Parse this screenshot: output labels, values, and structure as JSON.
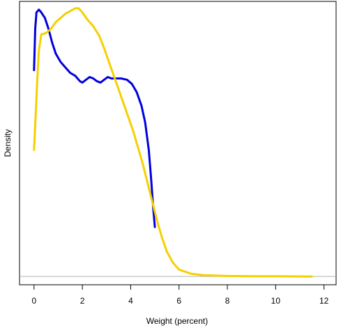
{
  "chart_data": {
    "type": "line",
    "title": "",
    "xlabel": "Weight (percent)",
    "ylabel": "Density",
    "xlim": [
      -0.6,
      12.5
    ],
    "ylim": [
      -0.03,
      1.0
    ],
    "x_ticks": [
      0,
      2,
      4,
      6,
      8,
      10,
      12
    ],
    "grid": false,
    "legend": "none",
    "baseline_color": "#b0b0b0",
    "series": [
      {
        "color": "#0000dd",
        "points": [
          [
            0.0,
            0.75
          ],
          [
            0.05,
            0.9
          ],
          [
            0.1,
            0.96
          ],
          [
            0.2,
            0.97
          ],
          [
            0.3,
            0.96
          ],
          [
            0.45,
            0.94
          ],
          [
            0.6,
            0.9
          ],
          [
            0.75,
            0.85
          ],
          [
            0.9,
            0.81
          ],
          [
            1.1,
            0.78
          ],
          [
            1.3,
            0.76
          ],
          [
            1.5,
            0.74
          ],
          [
            1.7,
            0.73
          ],
          [
            1.9,
            0.71
          ],
          [
            2.0,
            0.705
          ],
          [
            2.15,
            0.715
          ],
          [
            2.3,
            0.725
          ],
          [
            2.45,
            0.72
          ],
          [
            2.6,
            0.71
          ],
          [
            2.75,
            0.705
          ],
          [
            2.9,
            0.715
          ],
          [
            3.05,
            0.725
          ],
          [
            3.2,
            0.72
          ],
          [
            3.4,
            0.72
          ],
          [
            3.6,
            0.72
          ],
          [
            3.85,
            0.715
          ],
          [
            4.05,
            0.7
          ],
          [
            4.25,
            0.67
          ],
          [
            4.45,
            0.62
          ],
          [
            4.6,
            0.56
          ],
          [
            4.75,
            0.46
          ],
          [
            4.85,
            0.35
          ],
          [
            4.93,
            0.25
          ],
          [
            4.98,
            0.2
          ],
          [
            5.0,
            0.18
          ]
        ]
      },
      {
        "color": "#f5d000",
        "points": [
          [
            0.0,
            0.46
          ],
          [
            0.05,
            0.55
          ],
          [
            0.1,
            0.65
          ],
          [
            0.15,
            0.74
          ],
          [
            0.2,
            0.82
          ],
          [
            0.3,
            0.88
          ],
          [
            0.5,
            0.885
          ],
          [
            0.7,
            0.9
          ],
          [
            0.9,
            0.925
          ],
          [
            1.1,
            0.94
          ],
          [
            1.3,
            0.955
          ],
          [
            1.5,
            0.965
          ],
          [
            1.7,
            0.975
          ],
          [
            1.85,
            0.975
          ],
          [
            2.0,
            0.96
          ],
          [
            2.2,
            0.935
          ],
          [
            2.45,
            0.91
          ],
          [
            2.7,
            0.875
          ],
          [
            2.9,
            0.83
          ],
          [
            3.1,
            0.78
          ],
          [
            3.3,
            0.73
          ],
          [
            3.5,
            0.68
          ],
          [
            3.7,
            0.63
          ],
          [
            3.9,
            0.58
          ],
          [
            4.1,
            0.53
          ],
          [
            4.3,
            0.47
          ],
          [
            4.5,
            0.41
          ],
          [
            4.7,
            0.34
          ],
          [
            4.9,
            0.27
          ],
          [
            5.1,
            0.2
          ],
          [
            5.3,
            0.14
          ],
          [
            5.5,
            0.09
          ],
          [
            5.75,
            0.05
          ],
          [
            6.0,
            0.025
          ],
          [
            6.5,
            0.01
          ],
          [
            7.0,
            0.005
          ],
          [
            8.0,
            0.002
          ],
          [
            9.0,
            0.001
          ],
          [
            10.0,
            0.001
          ],
          [
            11.5,
            0.0
          ]
        ]
      }
    ]
  }
}
